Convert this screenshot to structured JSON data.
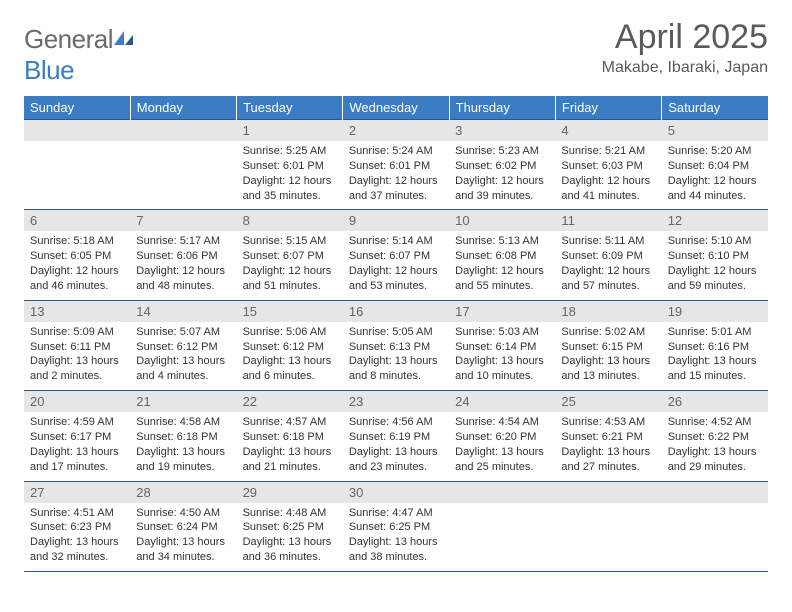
{
  "logo": {
    "text_general": "General",
    "text_blue": "Blue"
  },
  "title": "April 2025",
  "location": "Makabe, Ibaraki, Japan",
  "colors": {
    "header_bg": "#3b7dc4",
    "header_text": "#ffffff",
    "daynum_bg": "#e6e6e6",
    "daynum_text": "#666666",
    "body_text": "#333333",
    "rule": "#2a5a8a",
    "logo_gray": "#6a6a6a",
    "logo_blue": "#3b7dc4"
  },
  "weekdays": [
    "Sunday",
    "Monday",
    "Tuesday",
    "Wednesday",
    "Thursday",
    "Friday",
    "Saturday"
  ],
  "weeks": [
    [
      {
        "n": "",
        "sr": "",
        "ss": "",
        "dl": ""
      },
      {
        "n": "",
        "sr": "",
        "ss": "",
        "dl": ""
      },
      {
        "n": "1",
        "sr": "Sunrise: 5:25 AM",
        "ss": "Sunset: 6:01 PM",
        "dl": "Daylight: 12 hours and 35 minutes."
      },
      {
        "n": "2",
        "sr": "Sunrise: 5:24 AM",
        "ss": "Sunset: 6:01 PM",
        "dl": "Daylight: 12 hours and 37 minutes."
      },
      {
        "n": "3",
        "sr": "Sunrise: 5:23 AM",
        "ss": "Sunset: 6:02 PM",
        "dl": "Daylight: 12 hours and 39 minutes."
      },
      {
        "n": "4",
        "sr": "Sunrise: 5:21 AM",
        "ss": "Sunset: 6:03 PM",
        "dl": "Daylight: 12 hours and 41 minutes."
      },
      {
        "n": "5",
        "sr": "Sunrise: 5:20 AM",
        "ss": "Sunset: 6:04 PM",
        "dl": "Daylight: 12 hours and 44 minutes."
      }
    ],
    [
      {
        "n": "6",
        "sr": "Sunrise: 5:18 AM",
        "ss": "Sunset: 6:05 PM",
        "dl": "Daylight: 12 hours and 46 minutes."
      },
      {
        "n": "7",
        "sr": "Sunrise: 5:17 AM",
        "ss": "Sunset: 6:06 PM",
        "dl": "Daylight: 12 hours and 48 minutes."
      },
      {
        "n": "8",
        "sr": "Sunrise: 5:15 AM",
        "ss": "Sunset: 6:07 PM",
        "dl": "Daylight: 12 hours and 51 minutes."
      },
      {
        "n": "9",
        "sr": "Sunrise: 5:14 AM",
        "ss": "Sunset: 6:07 PM",
        "dl": "Daylight: 12 hours and 53 minutes."
      },
      {
        "n": "10",
        "sr": "Sunrise: 5:13 AM",
        "ss": "Sunset: 6:08 PM",
        "dl": "Daylight: 12 hours and 55 minutes."
      },
      {
        "n": "11",
        "sr": "Sunrise: 5:11 AM",
        "ss": "Sunset: 6:09 PM",
        "dl": "Daylight: 12 hours and 57 minutes."
      },
      {
        "n": "12",
        "sr": "Sunrise: 5:10 AM",
        "ss": "Sunset: 6:10 PM",
        "dl": "Daylight: 12 hours and 59 minutes."
      }
    ],
    [
      {
        "n": "13",
        "sr": "Sunrise: 5:09 AM",
        "ss": "Sunset: 6:11 PM",
        "dl": "Daylight: 13 hours and 2 minutes."
      },
      {
        "n": "14",
        "sr": "Sunrise: 5:07 AM",
        "ss": "Sunset: 6:12 PM",
        "dl": "Daylight: 13 hours and 4 minutes."
      },
      {
        "n": "15",
        "sr": "Sunrise: 5:06 AM",
        "ss": "Sunset: 6:12 PM",
        "dl": "Daylight: 13 hours and 6 minutes."
      },
      {
        "n": "16",
        "sr": "Sunrise: 5:05 AM",
        "ss": "Sunset: 6:13 PM",
        "dl": "Daylight: 13 hours and 8 minutes."
      },
      {
        "n": "17",
        "sr": "Sunrise: 5:03 AM",
        "ss": "Sunset: 6:14 PM",
        "dl": "Daylight: 13 hours and 10 minutes."
      },
      {
        "n": "18",
        "sr": "Sunrise: 5:02 AM",
        "ss": "Sunset: 6:15 PM",
        "dl": "Daylight: 13 hours and 13 minutes."
      },
      {
        "n": "19",
        "sr": "Sunrise: 5:01 AM",
        "ss": "Sunset: 6:16 PM",
        "dl": "Daylight: 13 hours and 15 minutes."
      }
    ],
    [
      {
        "n": "20",
        "sr": "Sunrise: 4:59 AM",
        "ss": "Sunset: 6:17 PM",
        "dl": "Daylight: 13 hours and 17 minutes."
      },
      {
        "n": "21",
        "sr": "Sunrise: 4:58 AM",
        "ss": "Sunset: 6:18 PM",
        "dl": "Daylight: 13 hours and 19 minutes."
      },
      {
        "n": "22",
        "sr": "Sunrise: 4:57 AM",
        "ss": "Sunset: 6:18 PM",
        "dl": "Daylight: 13 hours and 21 minutes."
      },
      {
        "n": "23",
        "sr": "Sunrise: 4:56 AM",
        "ss": "Sunset: 6:19 PM",
        "dl": "Daylight: 13 hours and 23 minutes."
      },
      {
        "n": "24",
        "sr": "Sunrise: 4:54 AM",
        "ss": "Sunset: 6:20 PM",
        "dl": "Daylight: 13 hours and 25 minutes."
      },
      {
        "n": "25",
        "sr": "Sunrise: 4:53 AM",
        "ss": "Sunset: 6:21 PM",
        "dl": "Daylight: 13 hours and 27 minutes."
      },
      {
        "n": "26",
        "sr": "Sunrise: 4:52 AM",
        "ss": "Sunset: 6:22 PM",
        "dl": "Daylight: 13 hours and 29 minutes."
      }
    ],
    [
      {
        "n": "27",
        "sr": "Sunrise: 4:51 AM",
        "ss": "Sunset: 6:23 PM",
        "dl": "Daylight: 13 hours and 32 minutes."
      },
      {
        "n": "28",
        "sr": "Sunrise: 4:50 AM",
        "ss": "Sunset: 6:24 PM",
        "dl": "Daylight: 13 hours and 34 minutes."
      },
      {
        "n": "29",
        "sr": "Sunrise: 4:48 AM",
        "ss": "Sunset: 6:25 PM",
        "dl": "Daylight: 13 hours and 36 minutes."
      },
      {
        "n": "30",
        "sr": "Sunrise: 4:47 AM",
        "ss": "Sunset: 6:25 PM",
        "dl": "Daylight: 13 hours and 38 minutes."
      },
      {
        "n": "",
        "sr": "",
        "ss": "",
        "dl": ""
      },
      {
        "n": "",
        "sr": "",
        "ss": "",
        "dl": ""
      },
      {
        "n": "",
        "sr": "",
        "ss": "",
        "dl": ""
      }
    ]
  ]
}
